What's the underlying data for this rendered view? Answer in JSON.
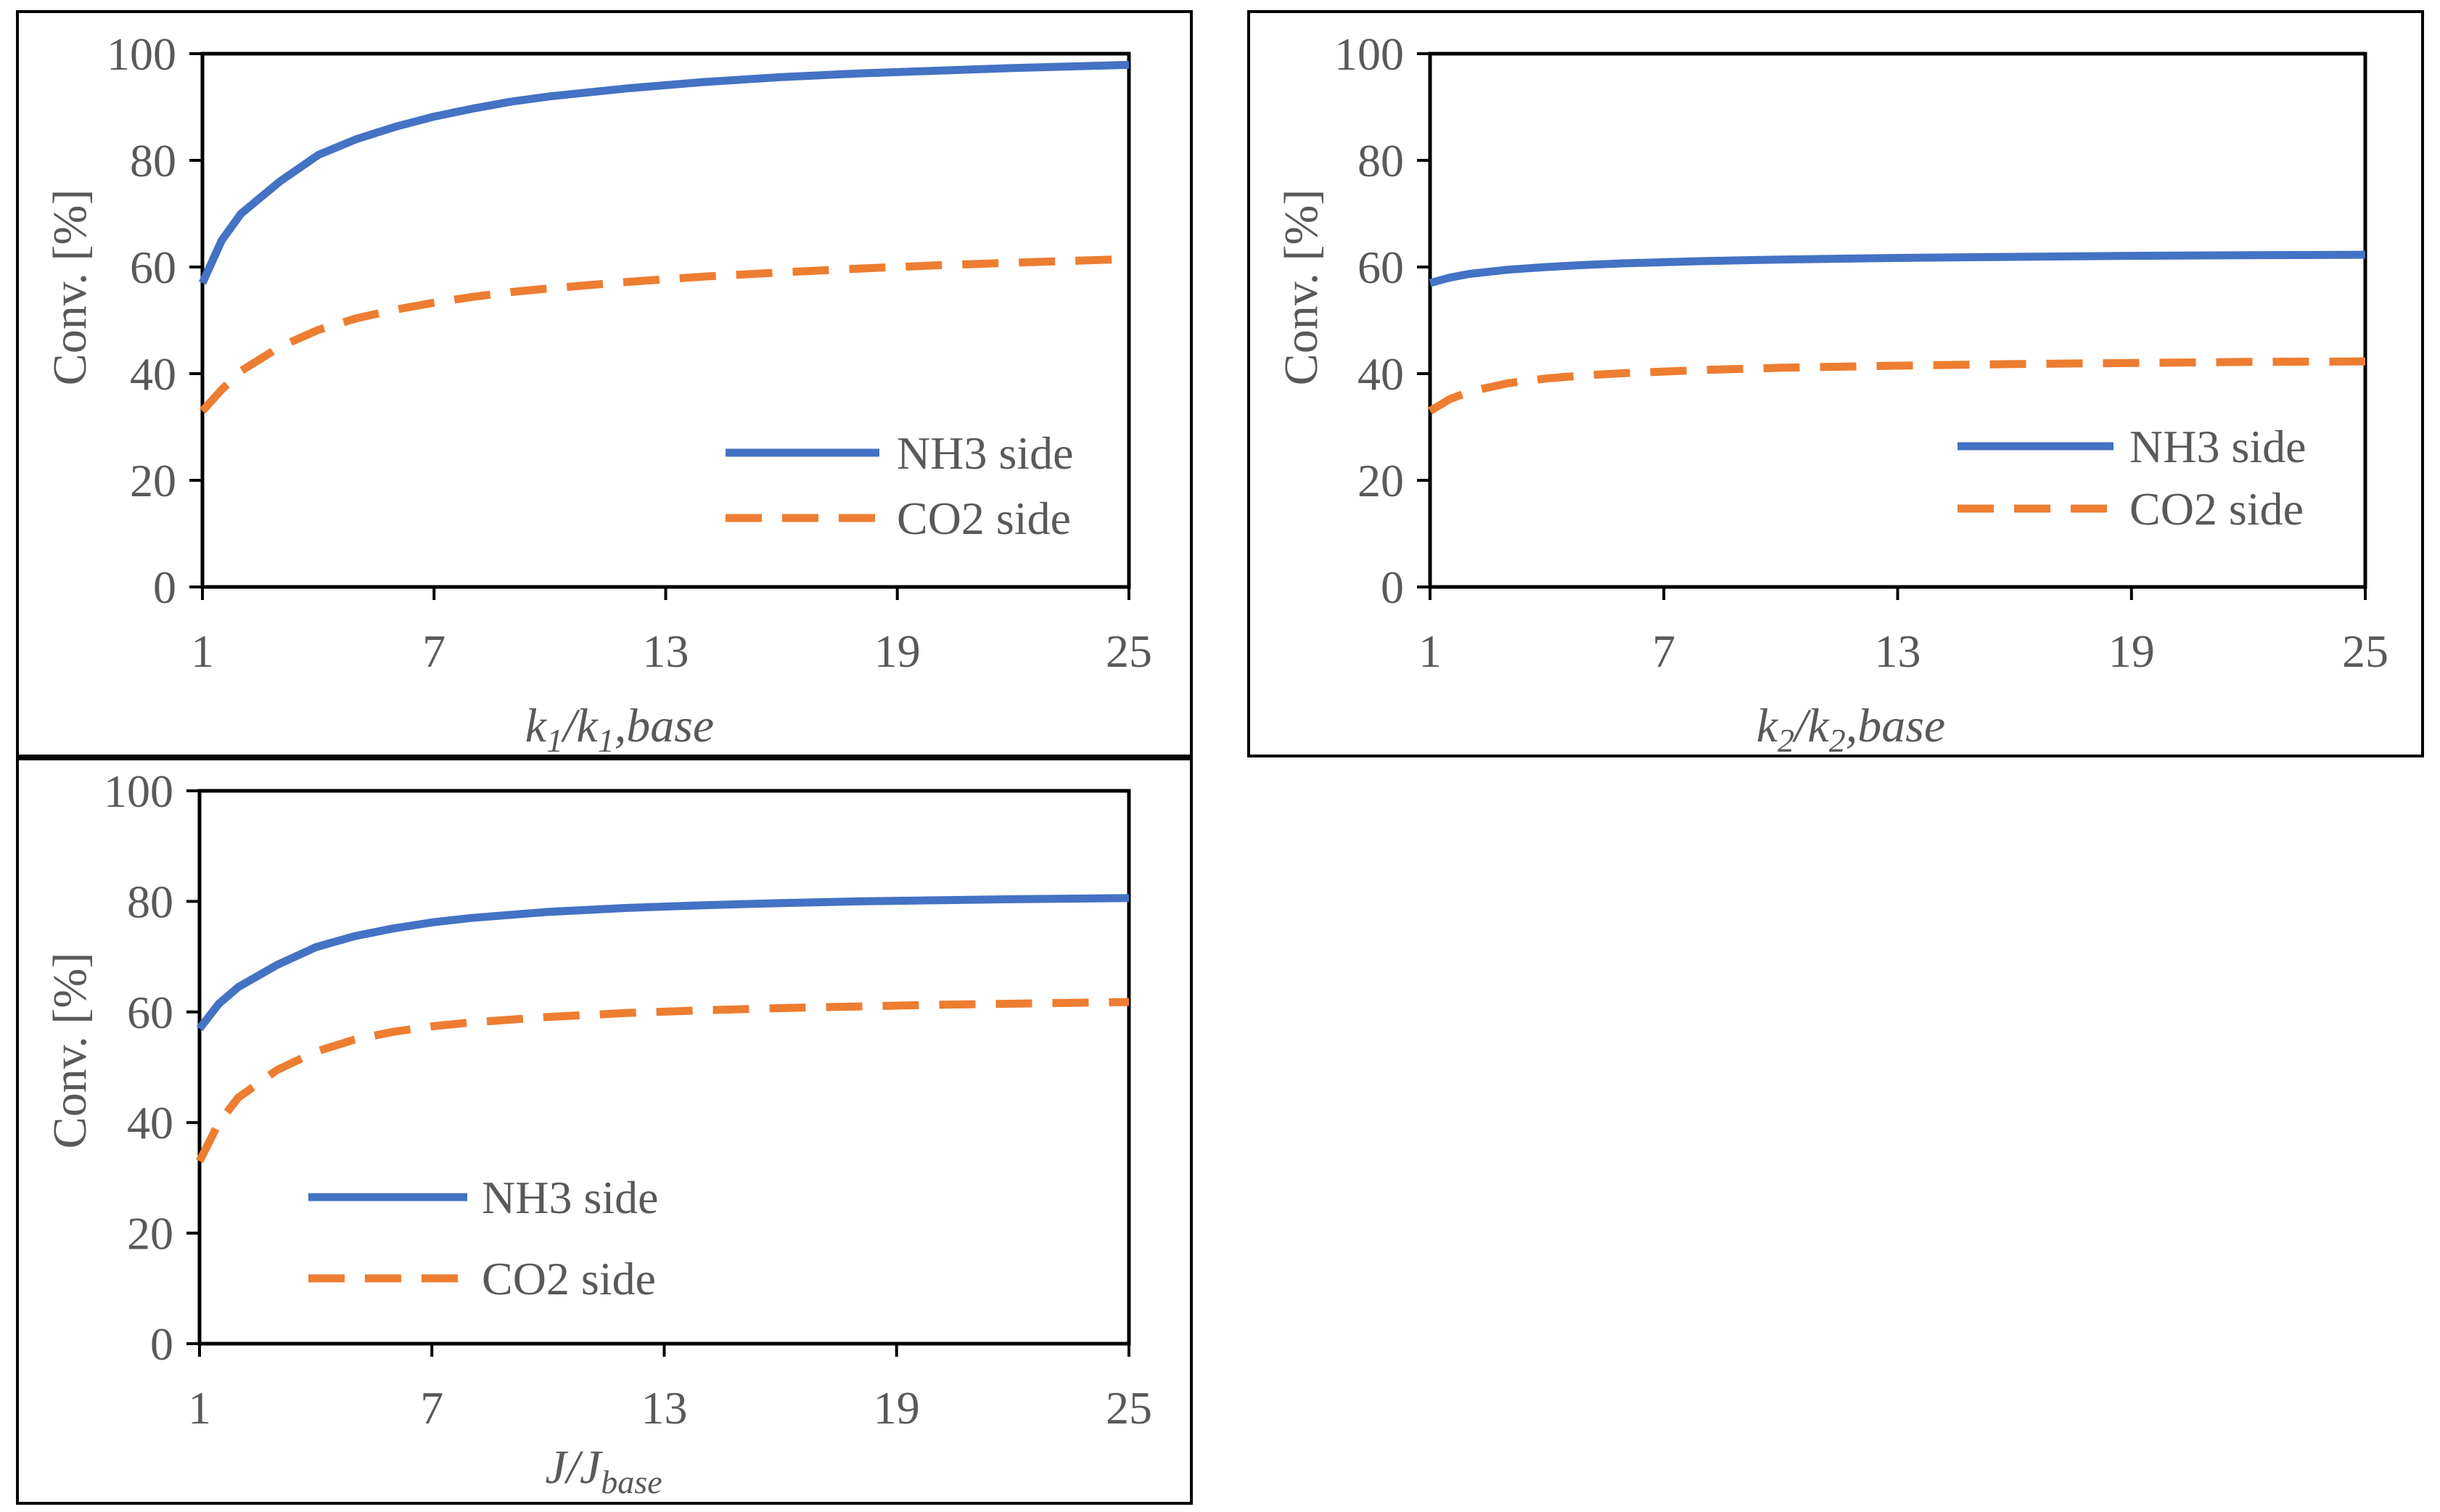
{
  "colors": {
    "nh3": "#4472C4",
    "co2": "#ED7D31",
    "axis": "#000000",
    "text": "#595959"
  },
  "chart_data": [
    {
      "type": "line",
      "panel": "k1",
      "x_label": {
        "main": "k",
        "sub1": "1",
        "mid": "/k",
        "sub2": "1",
        "tail": ",base"
      },
      "ylabel": "Conv. [%]",
      "xlim": [
        1,
        25
      ],
      "ylim": [
        0,
        100
      ],
      "xticks": [
        1,
        7,
        13,
        19,
        25
      ],
      "yticks": [
        0,
        20,
        40,
        60,
        80,
        100
      ],
      "x": [
        1,
        1.5,
        2,
        3,
        4,
        5,
        6,
        7,
        8,
        9,
        10,
        12,
        14,
        16,
        18,
        20,
        22,
        25
      ],
      "series": [
        {
          "name": "NH3 side",
          "style": "solid",
          "values": [
            57,
            65,
            70,
            76,
            81,
            84,
            86.3,
            88.2,
            89.7,
            91,
            92,
            93.5,
            94.7,
            95.6,
            96.3,
            96.8,
            97.3,
            97.9
          ]
        },
        {
          "name": "CO2 side",
          "style": "dashed",
          "values": [
            33,
            37,
            40.5,
            45,
            48.2,
            50.4,
            52,
            53.3,
            54.4,
            55.3,
            56,
            57.2,
            58.2,
            59,
            59.7,
            60.3,
            60.8,
            61.5
          ]
        }
      ],
      "legend_position": "bottom-right"
    },
    {
      "type": "line",
      "panel": "k2",
      "x_label": {
        "main": "k",
        "sub1": "2",
        "mid": "/k",
        "sub2": "2",
        "tail": ",base"
      },
      "ylabel": "Conv. [%]",
      "xlim": [
        1,
        25
      ],
      "ylim": [
        0,
        100
      ],
      "xticks": [
        1,
        7,
        13,
        19,
        25
      ],
      "yticks": [
        0,
        20,
        40,
        60,
        80,
        100
      ],
      "x": [
        1,
        1.5,
        2,
        3,
        4,
        5,
        6,
        7,
        8,
        10,
        13,
        16,
        19,
        22,
        25
      ],
      "series": [
        {
          "name": "NH3 side",
          "style": "solid",
          "values": [
            57,
            58,
            58.7,
            59.5,
            60,
            60.4,
            60.7,
            60.9,
            61.1,
            61.4,
            61.7,
            61.9,
            62.1,
            62.2,
            62.3
          ]
        },
        {
          "name": "CO2 side",
          "style": "dashed",
          "values": [
            33,
            35.2,
            36.6,
            38.2,
            39.1,
            39.7,
            40.1,
            40.4,
            40.7,
            41.1,
            41.5,
            41.8,
            42,
            42.2,
            42.3
          ]
        }
      ],
      "legend_position": "right"
    },
    {
      "type": "line",
      "panel": "J",
      "x_label": {
        "main": "J/J",
        "sub": "base"
      },
      "ylabel": "Conv. [%]",
      "xlim": [
        1,
        25
      ],
      "ylim": [
        0,
        100
      ],
      "xticks": [
        1,
        7,
        13,
        19,
        25
      ],
      "yticks": [
        0,
        20,
        40,
        60,
        80,
        100
      ],
      "x": [
        1,
        1.5,
        2,
        3,
        4,
        5,
        6,
        7,
        8,
        10,
        12,
        14,
        16,
        18,
        20,
        22,
        25
      ],
      "series": [
        {
          "name": "NH3 side",
          "style": "solid",
          "values": [
            57,
            61.5,
            64.5,
            68.5,
            71.7,
            73.7,
            75.1,
            76.2,
            77,
            78.1,
            78.8,
            79.3,
            79.7,
            80,
            80.2,
            80.4,
            80.6
          ]
        },
        {
          "name": "CO2 side",
          "style": "dashed",
          "values": [
            33,
            40,
            44.5,
            49.5,
            52.8,
            55,
            56.4,
            57.4,
            58.1,
            59.1,
            59.8,
            60.3,
            60.7,
            61,
            61.3,
            61.5,
            61.8
          ]
        }
      ],
      "legend_position": "center-left"
    }
  ]
}
